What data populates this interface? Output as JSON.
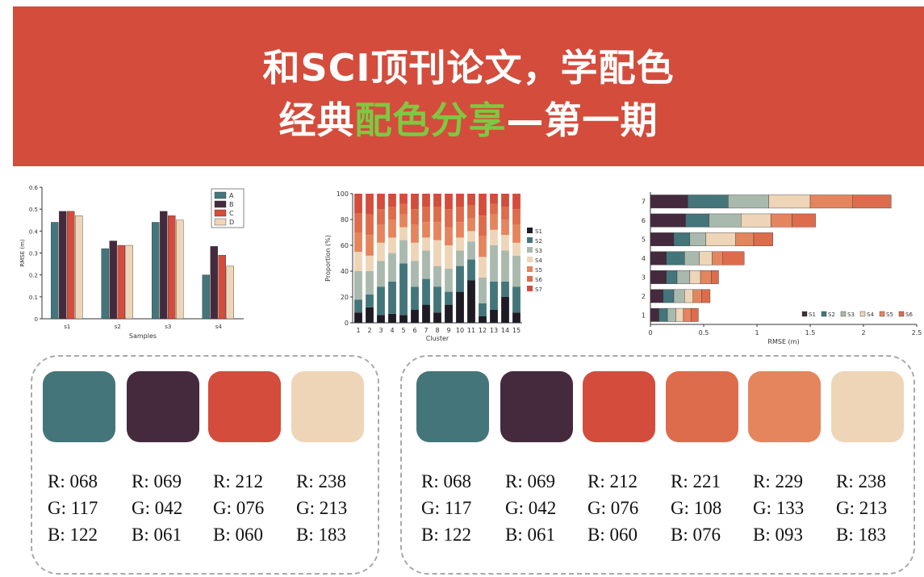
{
  "title": {
    "line1": "和SCI顶刊论文，学配色",
    "line2_a": "经典",
    "line2_b": "配色分享",
    "line2_c": "—第一期"
  },
  "colors": {
    "banner": "#d44c3c",
    "highlight": "#7ec843",
    "c1": "#44757a",
    "c2": "#452a3d",
    "c3": "#d44c3c",
    "c4": "#dd6c4c",
    "c5": "#e5855d",
    "c6": "#eed5b7"
  },
  "chart_data": [
    {
      "type": "bar",
      "categories": [
        "s1",
        "s2",
        "s3",
        "s4"
      ],
      "series": [
        {
          "name": "A",
          "color": "#44757a",
          "values": [
            0.44,
            0.32,
            0.44,
            0.2
          ]
        },
        {
          "name": "B",
          "color": "#452a3d",
          "values": [
            0.49,
            0.355,
            0.49,
            0.33
          ]
        },
        {
          "name": "C",
          "color": "#d44c3c",
          "values": [
            0.49,
            0.335,
            0.47,
            0.29
          ]
        },
        {
          "name": "D",
          "color": "#eed5b7",
          "values": [
            0.47,
            0.335,
            0.45,
            0.24
          ]
        }
      ],
      "xlabel": "Samples",
      "ylabel": "RMSE (m)",
      "ylim": [
        0,
        0.6
      ],
      "yticks": [
        "0",
        "0.1",
        "0.2",
        "0.3",
        "0.4",
        "0.5",
        "0.6"
      ],
      "legend": "top-right"
    },
    {
      "type": "bar",
      "stacked": true,
      "categories": [
        "1",
        "2",
        "3",
        "4",
        "5",
        "6",
        "7",
        "8",
        "9",
        "10",
        "11",
        "12",
        "13",
        "14",
        "15"
      ],
      "series": [
        {
          "name": "S1",
          "color": "#1f1b24",
          "values": [
            8,
            12,
            6,
            7,
            6,
            10,
            14,
            8,
            14,
            24,
            33,
            5,
            10,
            20,
            8
          ]
        },
        {
          "name": "S2",
          "color": "#44757a",
          "values": [
            10,
            10,
            22,
            25,
            40,
            18,
            20,
            20,
            10,
            20,
            16,
            10,
            22,
            12,
            20
          ]
        },
        {
          "name": "S3",
          "color": "#aab9ad",
          "values": [
            22,
            18,
            20,
            22,
            18,
            20,
            22,
            16,
            18,
            12,
            14,
            20,
            28,
            24,
            24
          ]
        },
        {
          "name": "S4",
          "color": "#eed5b7",
          "values": [
            15,
            12,
            14,
            12,
            10,
            14,
            10,
            20,
            18,
            10,
            8,
            16,
            12,
            12,
            10
          ]
        },
        {
          "name": "S5",
          "color": "#e5855d",
          "values": [
            15,
            16,
            14,
            14,
            10,
            14,
            12,
            14,
            14,
            12,
            10,
            16,
            12,
            12,
            14
          ]
        },
        {
          "name": "S6",
          "color": "#dd6c4c",
          "values": [
            15,
            16,
            12,
            10,
            8,
            12,
            12,
            12,
            14,
            12,
            10,
            16,
            8,
            10,
            12
          ]
        },
        {
          "name": "S7",
          "color": "#d44c3c",
          "values": [
            15,
            16,
            12,
            10,
            8,
            12,
            10,
            10,
            12,
            10,
            9,
            17,
            8,
            10,
            12
          ]
        }
      ],
      "xlabel": "Cluster",
      "ylabel": "Proportion (%)",
      "ylim": [
        0,
        100
      ],
      "yticks": [
        "0",
        "20",
        "40",
        "60",
        "80",
        "100"
      ],
      "legend": "right"
    },
    {
      "type": "bar",
      "stacked": true,
      "orientation": "horizontal",
      "categories": [
        "1",
        "2",
        "3",
        "4",
        "5",
        "6",
        "7"
      ],
      "series": [
        {
          "name": "S1",
          "color": "#452a3d",
          "values": [
            0.08,
            0.12,
            0.15,
            0.15,
            0.22,
            0.33,
            0.35
          ]
        },
        {
          "name": "S2",
          "color": "#44757a",
          "values": [
            0.08,
            0.1,
            0.1,
            0.17,
            0.15,
            0.22,
            0.38
          ]
        },
        {
          "name": "S3",
          "color": "#aab9ad",
          "values": [
            0.08,
            0.1,
            0.12,
            0.14,
            0.15,
            0.3,
            0.38
          ]
        },
        {
          "name": "S4",
          "color": "#eed5b7",
          "values": [
            0.07,
            0.08,
            0.1,
            0.12,
            0.28,
            0.28,
            0.39
          ]
        },
        {
          "name": "S5",
          "color": "#e5855d",
          "values": [
            0.07,
            0.08,
            0.1,
            0.1,
            0.17,
            0.2,
            0.4
          ]
        },
        {
          "name": "S6",
          "color": "#dd6c4c",
          "values": [
            0.07,
            0.08,
            0.07,
            0.2,
            0.18,
            0.22,
            0.36
          ]
        }
      ],
      "xlabel": "RMSE (m)",
      "xlim": [
        0,
        2.5
      ],
      "xticks": [
        "0",
        "0.5",
        "1",
        "1.5",
        "2",
        "2.5"
      ],
      "legend": "bottom-right"
    }
  ],
  "palette_left": [
    {
      "color": "#44757a",
      "r": "R: 068",
      "g": "G: 117",
      "b": "B: 122"
    },
    {
      "color": "#452a3d",
      "r": "R: 069",
      "g": "G: 042",
      "b": "B: 061"
    },
    {
      "color": "#d44c3c",
      "r": "R: 212",
      "g": "G: 076",
      "b": "B: 060"
    },
    {
      "color": "#eed5b7",
      "r": "R: 238",
      "g": "G: 213",
      "b": "B: 183"
    }
  ],
  "palette_right": [
    {
      "color": "#44757a",
      "r": "R: 068",
      "g": "G: 117",
      "b": "B: 122"
    },
    {
      "color": "#452a3d",
      "r": "R: 069",
      "g": "G: 042",
      "b": "B: 061"
    },
    {
      "color": "#d44c3c",
      "r": "R: 212",
      "g": "G: 076",
      "b": "B: 060"
    },
    {
      "color": "#dd6c4c",
      "r": "R: 221",
      "g": "G: 108",
      "b": "B: 076"
    },
    {
      "color": "#e5855d",
      "r": "R: 229",
      "g": "G: 133",
      "b": "B: 093"
    },
    {
      "color": "#eed5b7",
      "r": "R: 238",
      "g": "G: 213",
      "b": "B: 183"
    }
  ]
}
